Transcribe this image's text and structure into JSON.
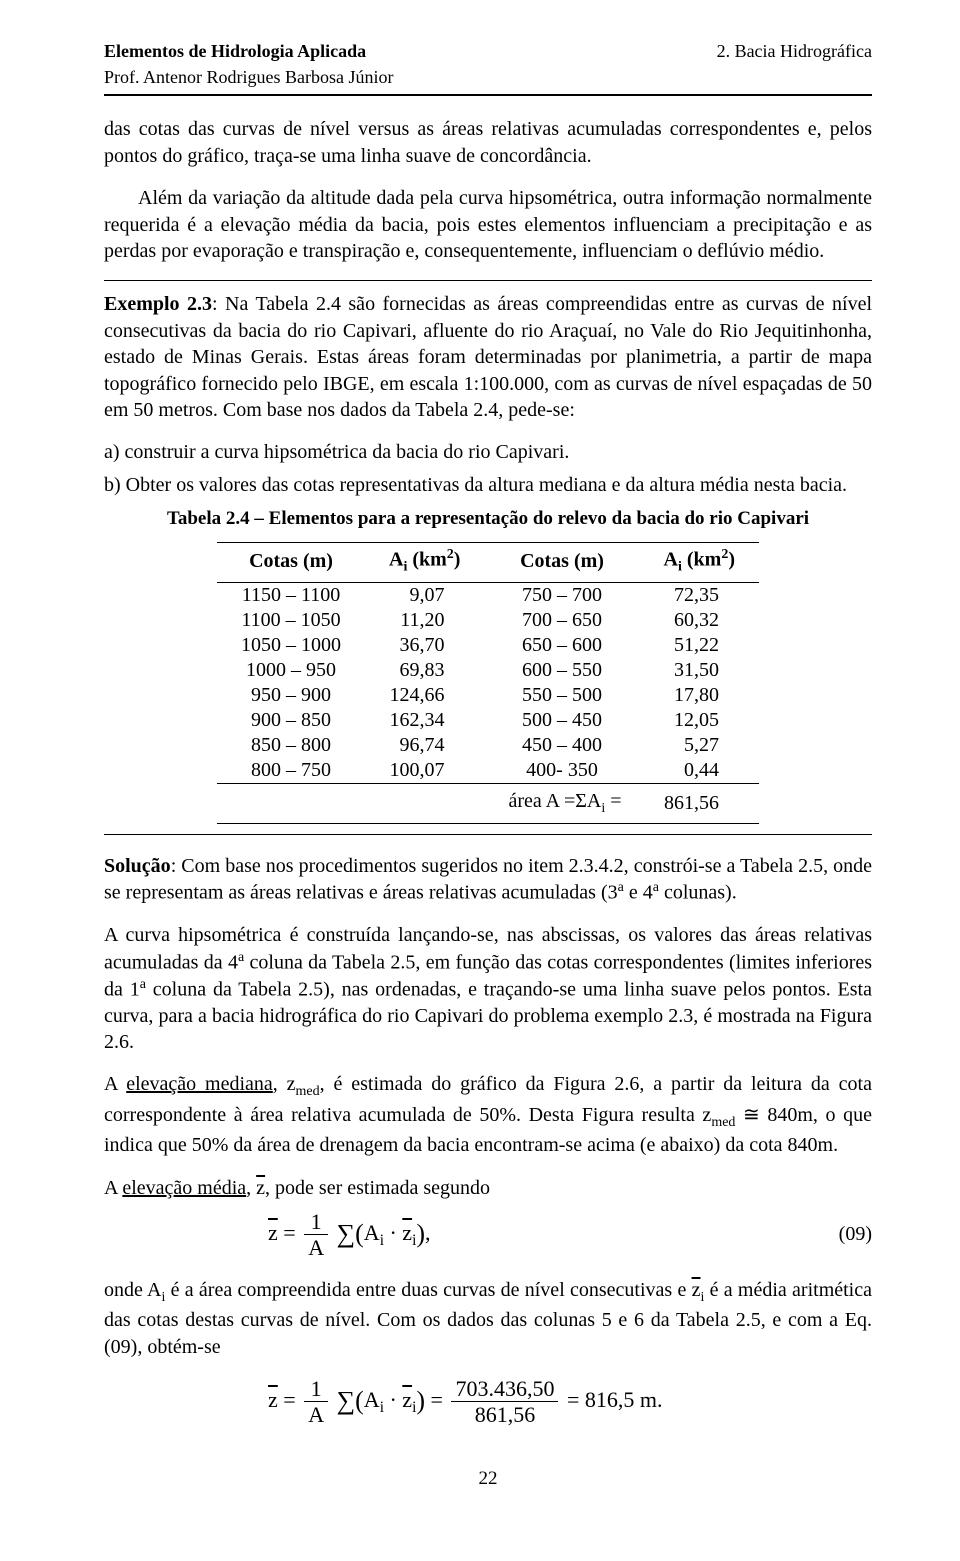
{
  "header": {
    "title_left": "Elementos de Hidrologia Aplicada",
    "title_right": "2. Bacia Hidrográfica",
    "author": "Prof. Antenor Rodrigues Barbosa Júnior"
  },
  "paragraphs": {
    "p1": "das cotas das curvas de nível versus as áreas relativas acumuladas correspondentes e, pelos pontos do gráfico, traça-se uma linha suave de concordância.",
    "p2": "Além da variação da altitude dada pela curva hipsométrica, outra informação normalmente requerida é a elevação média da bacia, pois estes elementos influenciam a precipitação e as perdas por evaporação e transpiração e, consequentemente, influenciam o deflúvio médio.",
    "ex_label": "Exemplo 2.3",
    "ex_body": ": Na Tabela 2.4 são fornecidas as áreas compreendidas entre as curvas de nível consecutivas da bacia do rio Capivari, afluente do rio Araçuaí, no Vale do Rio Jequitinhonha, estado de Minas Gerais. Estas áreas foram determinadas por planimetria, a partir de mapa topográfico fornecido pelo IBGE, em escala 1:100.000, com as curvas de nível espaçadas de 50 em 50 metros. Com base nos dados da Tabela 2.4, pede-se:",
    "item_a": "a) construir a curva hipsométrica da bacia do rio Capivari.",
    "item_b": "b) Obter os valores das cotas representativas da altura mediana e da altura média nesta bacia.",
    "sol_label": "Solução",
    "sol1": ": Com base nos procedimentos sugeridos no item 2.3.4.2, constrói-se a Tabela 2.5, onde se representam as áreas relativas e áreas relativas acumuladas (3",
    "sol1b": " e 4",
    "sol1c": " colunas).",
    "sol2": "A curva hipsométrica é construída lançando-se, nas abscissas, os valores das áreas relativas acumuladas da 4",
    "sol2b": " coluna da Tabela 2.5, em função das cotas correspondentes (limites inferiores da 1",
    "sol2c": " coluna da Tabela 2.5), nas ordenadas, e traçando-se uma linha suave pelos pontos. Esta curva, para a bacia hidrográfica do rio Capivari do problema exemplo 2.3, é mostrada na Figura 2.6.",
    "sol3a": "A ",
    "sol3_u": "elevação mediana",
    "sol3b": ", z",
    "sol3c": ", é estimada do gráfico da Figura 2.6, a partir da leitura da cota correspondente à área relativa acumulada de 50%. Desta Figura resulta z",
    "sol3d": " ≅ 840m, o que indica que 50% da área de drenagem da bacia encontram-se acima (e abaixo) da cota 840m.",
    "sol4a": "A ",
    "sol4_u": "elevação média",
    "sol4b": ", ",
    "sol4c": ", pode ser estimada segundo",
    "sol5a": "onde A",
    "sol5b": " é a área compreendida entre duas curvas de nível consecutivas e ",
    "sol5c": " é a média aritmética das cotas destas curvas de nível. Com os dados das colunas 5 e 6 da Tabela 2.5, e com a Eq. (09), obtém-se"
  },
  "table": {
    "caption": "Tabela 2.4 – Elementos para a representação do relevo da bacia do rio Capivari",
    "headers": {
      "c1": "Cotas (m)",
      "c2_pre": "A",
      "c2_sub": "i",
      "c2_post": " (km",
      "c2_sup": "2",
      "c2_end": ")",
      "c3": "Cotas (m)",
      "c4_pre": "A",
      "c4_sub": "i",
      "c4_post": " (km",
      "c4_sup": "2",
      "c4_end": ")"
    },
    "rows": [
      {
        "c1": "1150 – 1100",
        "c2": "9,07",
        "c3": "750 – 700",
        "c4": "72,35"
      },
      {
        "c1": "1100 – 1050",
        "c2": "11,20",
        "c3": "700 – 650",
        "c4": "60,32"
      },
      {
        "c1": "1050 – 1000",
        "c2": "36,70",
        "c3": "650 – 600",
        "c4": "51,22"
      },
      {
        "c1": "1000 – 950",
        "c2": "69,83",
        "c3": "600 – 550",
        "c4": "31,50"
      },
      {
        "c1": "950 – 900",
        "c2": "124,66",
        "c3": "550 – 500",
        "c4": "17,80"
      },
      {
        "c1": "900 – 850",
        "c2": "162,34",
        "c3": "500 – 450",
        "c4": "12,05"
      },
      {
        "c1": "850 – 800",
        "c2": "96,74",
        "c3": "450 – 400",
        "c4": "5,27"
      },
      {
        "c1": "800 – 750",
        "c2": "100,07",
        "c3": "400- 350",
        "c4": "0,44"
      }
    ],
    "area_label_pre": "área A =ΣA",
    "area_label_sub": "i",
    "area_label_post": " =",
    "area_total": "861,56"
  },
  "equations": {
    "eq09_num": "(09)",
    "eq09_lhs_bar": "z",
    "eq09_frac_top": "1",
    "eq09_frac_bot": "A",
    "eq09_sum_body_A": "A",
    "eq09_sum_body_z": "z",
    "eq09_sub": "i",
    "eq09_comma": ",",
    "eq_final_frac_top": "703.436,50",
    "eq_final_frac_bot": "861,56",
    "eq_final_result": "816,5 m."
  },
  "page_number": "22"
}
